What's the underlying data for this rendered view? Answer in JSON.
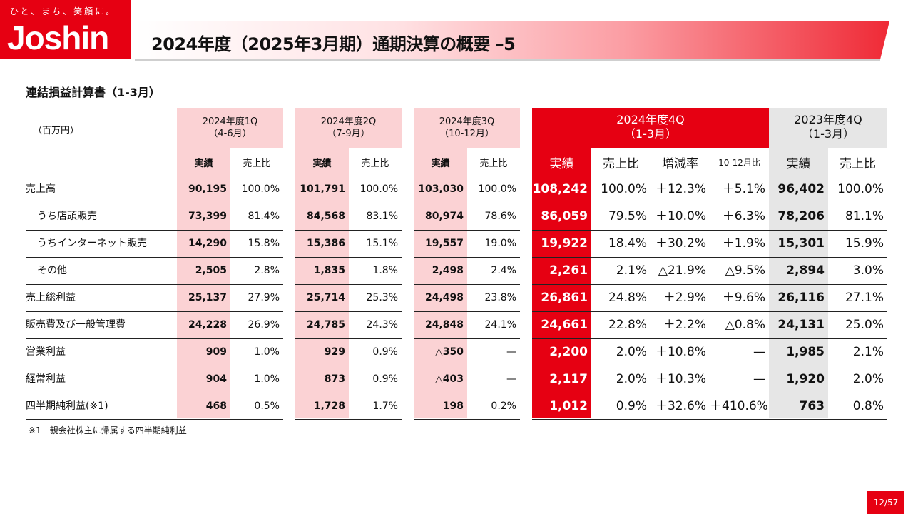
{
  "logo": {
    "tagline": "ひと、まち、笑顔に。",
    "name": "Joshin"
  },
  "title": "2024年度（2025年3月期）通期決算の概要 –5",
  "subtitle": "連結損益計算書（1-3月）",
  "unit": "（百万円）",
  "columns": {
    "q1": {
      "header": "2024年度1Q\n（4-6月）",
      "sub": [
        "実績",
        "売上比"
      ]
    },
    "q2": {
      "header": "2024年度2Q\n（7-9月）",
      "sub": [
        "実績",
        "売上比"
      ]
    },
    "q3": {
      "header": "2024年度3Q\n（10-12月）",
      "sub": [
        "実績",
        "売上比"
      ]
    },
    "q4": {
      "header": "2024年度4Q\n（1-3月）",
      "sub": [
        "実績",
        "売上比",
        "増減率",
        "10-12月比"
      ]
    },
    "py": {
      "header": "2023年度4Q\n（1-3月）",
      "sub": [
        "実績",
        "売上比"
      ]
    }
  },
  "rows": [
    {
      "label": "売上高",
      "indent": false,
      "q1": [
        "90,195",
        "100.0%"
      ],
      "q2": [
        "101,791",
        "100.0%"
      ],
      "q3": [
        "103,030",
        "100.0%"
      ],
      "q4": [
        "108,242",
        "100.0%",
        "＋12.3%",
        "＋5.1%"
      ],
      "py": [
        "96,402",
        "100.0%"
      ]
    },
    {
      "label": "うち店頭販売",
      "indent": true,
      "q1": [
        "73,399",
        "81.4%"
      ],
      "q2": [
        "84,568",
        "83.1%"
      ],
      "q3": [
        "80,974",
        "78.6%"
      ],
      "q4": [
        "86,059",
        "79.5%",
        "＋10.0%",
        "＋6.3%"
      ],
      "py": [
        "78,206",
        "81.1%"
      ]
    },
    {
      "label": "うちインターネット販売",
      "indent": true,
      "q1": [
        "14,290",
        "15.8%"
      ],
      "q2": [
        "15,386",
        "15.1%"
      ],
      "q3": [
        "19,557",
        "19.0%"
      ],
      "q4": [
        "19,922",
        "18.4%",
        "＋30.2%",
        "＋1.9%"
      ],
      "py": [
        "15,301",
        "15.9%"
      ]
    },
    {
      "label": "その他",
      "indent": true,
      "q1": [
        "2,505",
        "2.8%"
      ],
      "q2": [
        "1,835",
        "1.8%"
      ],
      "q3": [
        "2,498",
        "2.4%"
      ],
      "q4": [
        "2,261",
        "2.1%",
        "△21.9%",
        "△9.5%"
      ],
      "py": [
        "2,894",
        "3.0%"
      ]
    },
    {
      "label": "売上総利益",
      "indent": false,
      "q1": [
        "25,137",
        "27.9%"
      ],
      "q2": [
        "25,714",
        "25.3%"
      ],
      "q3": [
        "24,498",
        "23.8%"
      ],
      "q4": [
        "26,861",
        "24.8%",
        "＋2.9%",
        "＋9.6%"
      ],
      "py": [
        "26,116",
        "27.1%"
      ]
    },
    {
      "label": "販売費及び一般管理費",
      "indent": false,
      "q1": [
        "24,228",
        "26.9%"
      ],
      "q2": [
        "24,785",
        "24.3%"
      ],
      "q3": [
        "24,848",
        "24.1%"
      ],
      "q4": [
        "24,661",
        "22.8%",
        "＋2.2%",
        "△0.8%"
      ],
      "py": [
        "24,131",
        "25.0%"
      ]
    },
    {
      "label": "営業利益",
      "indent": false,
      "q1": [
        "909",
        "1.0%"
      ],
      "q2": [
        "929",
        "0.9%"
      ],
      "q3": [
        "△350",
        "—"
      ],
      "q4": [
        "2,200",
        "2.0%",
        "＋10.8%",
        "—"
      ],
      "py": [
        "1,985",
        "2.1%"
      ]
    },
    {
      "label": "経常利益",
      "indent": false,
      "q1": [
        "904",
        "1.0%"
      ],
      "q2": [
        "873",
        "0.9%"
      ],
      "q3": [
        "△403",
        "—"
      ],
      "q4": [
        "2,117",
        "2.0%",
        "＋10.3%",
        "—"
      ],
      "py": [
        "1,920",
        "2.0%"
      ]
    },
    {
      "label": "四半期純利益(※1)",
      "indent": false,
      "q1": [
        "468",
        "0.5%"
      ],
      "q2": [
        "1,728",
        "1.7%"
      ],
      "q3": [
        "198",
        "0.2%"
      ],
      "q4": [
        "1,012",
        "0.9%",
        "＋32.6%",
        "＋410.6%"
      ],
      "py": [
        "763",
        "0.8%"
      ]
    }
  ],
  "footnote": "※1　親会社株主に帰属する四半期純利益",
  "page": "12/57",
  "colors": {
    "brand_red": "#e60012",
    "pink": "#fbd2d4",
    "grey": "#e6e6e6"
  }
}
